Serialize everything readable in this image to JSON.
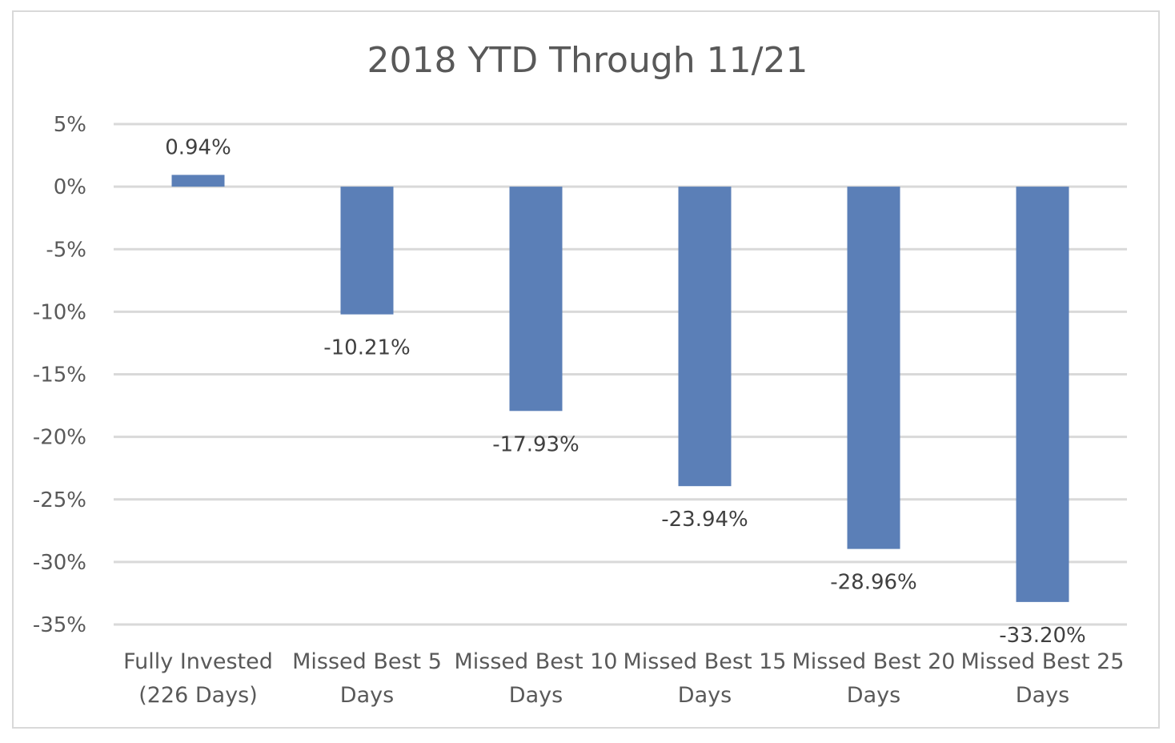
{
  "chart_data": {
    "type": "bar",
    "title": "2018 YTD Through 11/21",
    "categories": [
      [
        "Fully Invested",
        "(226 Days)"
      ],
      [
        "Missed Best 5",
        "Days"
      ],
      [
        "Missed Best 10",
        "Days"
      ],
      [
        "Missed Best 15",
        "Days"
      ],
      [
        "Missed Best 20",
        "Days"
      ],
      [
        "Missed Best 25",
        "Days"
      ]
    ],
    "values": [
      0.94,
      -10.21,
      -17.93,
      -23.94,
      -28.96,
      -33.2
    ],
    "data_labels": [
      "0.94%",
      "-10.21%",
      "-17.93%",
      "-23.94%",
      "-28.96%",
      "-33.20%"
    ],
    "yticks": [
      5,
      0,
      -5,
      -10,
      -15,
      -20,
      -25,
      -30,
      -35
    ],
    "ytick_labels": [
      "5%",
      "0%",
      "-5%",
      "-10%",
      "-15%",
      "-20%",
      "-25%",
      "-30%",
      "-35%"
    ],
    "ylim": [
      -35,
      5
    ],
    "xlabel": "",
    "ylabel": "",
    "grid": true,
    "bar_color": "#5b7fb7",
    "grid_color": "#d9d9d9"
  }
}
